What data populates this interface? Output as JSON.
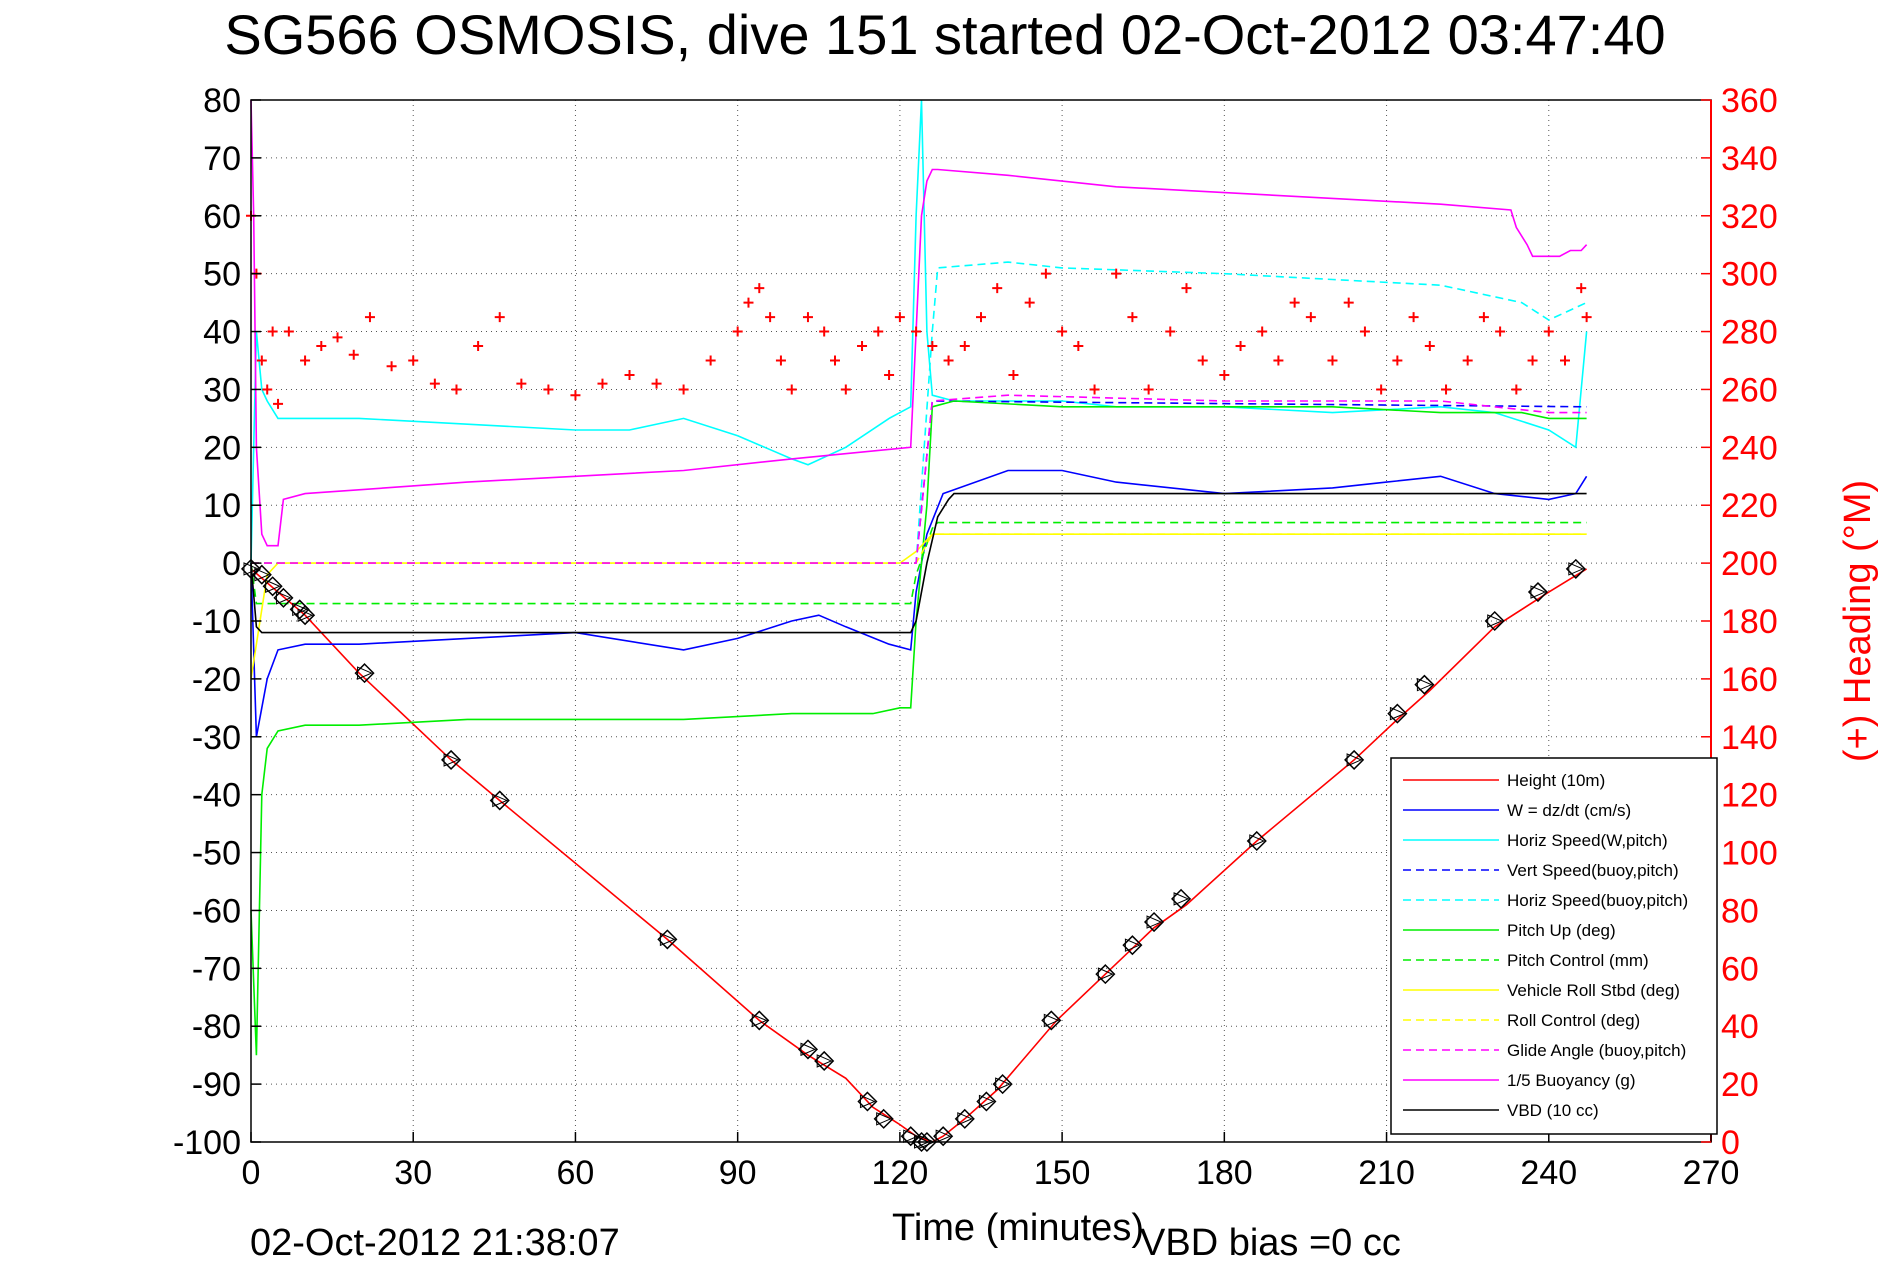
{
  "title": "SG566 OSMOSIS, dive 151 started 02-Oct-2012 03:47:40",
  "footer": {
    "timestamp": "02-Oct-2012 21:38:07",
    "vbd_bias": "VBD bias =0 cc"
  },
  "colors": {
    "height": "#ff0000",
    "w": "#0000ff",
    "horiz_w": "#00ffff",
    "vert_buoy": "#0000ff",
    "horiz_buoy": "#00ffff",
    "pitch_up": "#00ee00",
    "pitch_control": "#00ee00",
    "roll": "#ffff00",
    "roll_control": "#ffff00",
    "glide": "#ff00ff",
    "buoyancy": "#ff00ff",
    "vbd": "#000000",
    "heading": "#ff0000"
  },
  "chart_data": {
    "type": "line",
    "title": "SG566 OSMOSIS, dive 151 started 02-Oct-2012 03:47:40",
    "xlabel": "Time (minutes)",
    "ylabel": "",
    "y2label": "(+) Heading (°M)",
    "xlim": [
      0,
      270
    ],
    "ylim": [
      -100,
      80
    ],
    "y2lim": [
      0,
      360
    ],
    "x_ticks": [
      0,
      30,
      60,
      90,
      120,
      150,
      180,
      210,
      240,
      270
    ],
    "y_ticks": [
      -100,
      -90,
      -80,
      -70,
      -60,
      -50,
      -40,
      -30,
      -20,
      -10,
      0,
      10,
      20,
      30,
      40,
      50,
      60,
      70,
      80
    ],
    "y2_ticks": [
      0,
      20,
      40,
      60,
      80,
      100,
      120,
      140,
      160,
      180,
      200,
      220,
      240,
      260,
      280,
      300,
      320,
      340,
      360
    ],
    "grid": true,
    "legend_position": "bottom-right",
    "series": [
      {
        "name": "Height (10m)",
        "style": "solid",
        "color": "#ff0000",
        "x": [
          0,
          5,
          10,
          20,
          37,
          46,
          77,
          94,
          103,
          110,
          115,
          120,
          123,
          126,
          128,
          132,
          138,
          149,
          158,
          167,
          173,
          186,
          204,
          212,
          218,
          230,
          240,
          247
        ],
        "y": [
          -1,
          -5,
          -9,
          -19,
          -34,
          -41,
          -65,
          -79,
          -85,
          -89,
          -94,
          -97,
          -99,
          -100,
          -99,
          -96,
          -91,
          -79,
          -71,
          -63,
          -59,
          -48,
          -34,
          -27,
          -22,
          -11,
          -5,
          -1
        ]
      },
      {
        "name": "W = dz/dt (cm/s)",
        "style": "solid",
        "color": "#0000ff",
        "x": [
          0,
          1,
          2,
          3,
          5,
          10,
          20,
          40,
          60,
          80,
          90,
          100,
          105,
          110,
          118,
          122,
          123,
          125,
          128,
          140,
          150,
          160,
          180,
          200,
          210,
          220,
          230,
          240,
          245,
          247
        ],
        "y": [
          0,
          -30,
          -25,
          -20,
          -15,
          -14,
          -14,
          -13,
          -12,
          -15,
          -13,
          -10,
          -9,
          -11,
          -14,
          -15,
          -5,
          5,
          12,
          16,
          16,
          14,
          12,
          13,
          14,
          15,
          12,
          11,
          12,
          15
        ]
      },
      {
        "name": "Horiz Speed(W,pitch)",
        "style": "solid",
        "color": "#00ffff",
        "x": [
          0,
          1,
          2,
          3,
          5,
          10,
          20,
          40,
          60,
          70,
          80,
          90,
          95,
          100,
          103,
          110,
          118,
          122,
          123,
          124,
          125,
          126,
          130,
          140,
          150,
          160,
          180,
          200,
          220,
          230,
          240,
          245,
          247
        ],
        "y": [
          0,
          40,
          30,
          28,
          25,
          25,
          25,
          24,
          23,
          23,
          25,
          22,
          20,
          18,
          17,
          20,
          25,
          27,
          60,
          80,
          40,
          29,
          28,
          28,
          28,
          27,
          27,
          26,
          27,
          26,
          23,
          20,
          40
        ]
      },
      {
        "name": "Vert Speed(buoy,pitch)",
        "style": "dashed",
        "color": "#0000ff",
        "x": [
          0,
          5,
          60,
          122,
          123,
          126,
          247
        ],
        "y": [
          0,
          0,
          0,
          0,
          0,
          28,
          27
        ]
      },
      {
        "name": "Horiz Speed(buoy,pitch)",
        "style": "dashed",
        "color": "#00ffff",
        "x": [
          0,
          5,
          60,
          122,
          123,
          126,
          127,
          140,
          150,
          180,
          200,
          220,
          235,
          240,
          247
        ],
        "y": [
          0,
          0,
          0,
          0,
          0,
          40,
          51,
          52,
          51,
          50,
          49,
          48,
          45,
          42,
          45
        ]
      },
      {
        "name": "Pitch Up (deg)",
        "style": "solid",
        "color": "#00ee00",
        "x": [
          0,
          1,
          2,
          3,
          5,
          10,
          20,
          40,
          60,
          80,
          100,
          110,
          115,
          120,
          122,
          123,
          125,
          126,
          130,
          150,
          180,
          200,
          220,
          235,
          240,
          247
        ],
        "y": [
          -60,
          -85,
          -40,
          -32,
          -29,
          -28,
          -28,
          -27,
          -27,
          -27,
          -26,
          -26,
          -26,
          -25,
          -25,
          -10,
          10,
          27,
          28,
          27,
          27,
          27,
          26,
          26,
          25,
          25
        ]
      },
      {
        "name": "Pitch Control (mm)",
        "style": "dashed",
        "color": "#00ee00",
        "x": [
          0,
          1,
          3,
          120,
          122,
          123,
          126,
          127,
          247
        ],
        "y": [
          0,
          -7,
          -7,
          -7,
          -7,
          -2,
          6,
          7,
          7
        ]
      },
      {
        "name": "Vehicle Roll Stbd (deg)",
        "style": "solid",
        "color": "#ffff00",
        "x": [
          0,
          3,
          5,
          10,
          20,
          30,
          40,
          50,
          60,
          80,
          90,
          100,
          110,
          120,
          123,
          126,
          130,
          150,
          180,
          200,
          220,
          240,
          247
        ],
        "y": [
          -20,
          -2,
          0,
          0,
          0,
          0,
          0,
          0,
          0,
          0,
          0,
          0,
          0,
          0,
          2,
          5,
          5,
          5,
          5,
          5,
          5,
          5,
          5
        ]
      },
      {
        "name": "Roll Control (deg)",
        "style": "dashed",
        "color": "#ffff00",
        "x": [
          0,
          5,
          120,
          123,
          126,
          247
        ],
        "y": [
          0,
          0,
          0,
          0,
          5,
          5
        ]
      },
      {
        "name": "Glide Angle (buoy,pitch)",
        "style": "dashed",
        "color": "#ff00ff",
        "x": [
          0,
          5,
          60,
          122,
          123,
          126,
          140,
          180,
          220,
          240,
          247
        ],
        "y": [
          0,
          0,
          0,
          0,
          0,
          28,
          29,
          28,
          28,
          26,
          26
        ]
      },
      {
        "name": "1/5 Buoyancy (g)",
        "style": "solid",
        "color": "#ff00ff",
        "x": [
          0,
          0.5,
          1,
          2,
          3,
          4,
          5,
          6,
          10,
          40,
          60,
          80,
          100,
          122,
          123,
          124,
          125,
          126,
          127,
          140,
          160,
          180,
          200,
          220,
          233,
          234,
          236,
          237,
          240,
          242,
          244,
          246,
          247
        ],
        "y": [
          80,
          60,
          20,
          5,
          3,
          3,
          3,
          11,
          12,
          14,
          15,
          16,
          18,
          20,
          40,
          60,
          66,
          68,
          68,
          67,
          65,
          64,
          63,
          62,
          61,
          58,
          55,
          53,
          53,
          53,
          54,
          54,
          55
        ]
      },
      {
        "name": "VBD (10 cc)",
        "style": "solid",
        "color": "#000000",
        "x": [
          0,
          1,
          2,
          3,
          122,
          123,
          125,
          127,
          129,
          130,
          247
        ],
        "y": [
          0,
          -11,
          -12,
          -12,
          -12,
          -10,
          0,
          8,
          11,
          12,
          12
        ]
      },
      {
        "name": "(+) Heading (°M)",
        "style": "markers",
        "marker": "+",
        "color": "#ff0000",
        "axis": "right",
        "x": [
          0,
          1,
          2,
          3,
          4,
          5,
          7,
          10,
          13,
          16,
          19,
          22,
          26,
          30,
          34,
          38,
          42,
          46,
          50,
          55,
          60,
          65,
          70,
          75,
          80,
          85,
          90,
          92,
          94,
          96,
          98,
          100,
          103,
          106,
          108,
          110,
          113,
          116,
          118,
          120,
          123,
          126,
          129,
          132,
          135,
          138,
          141,
          144,
          147,
          150,
          153,
          156,
          160,
          163,
          166,
          170,
          173,
          176,
          180,
          183,
          187,
          190,
          193,
          196,
          200,
          203,
          206,
          209,
          212,
          215,
          218,
          221,
          225,
          228,
          231,
          234,
          237,
          240,
          243,
          246,
          247
        ],
        "y": [
          320,
          300,
          270,
          260,
          280,
          255,
          280,
          270,
          275,
          278,
          272,
          285,
          268,
          270,
          262,
          260,
          275,
          285,
          262,
          260,
          258,
          262,
          265,
          262,
          260,
          270,
          280,
          290,
          295,
          285,
          270,
          260,
          285,
          280,
          270,
          260,
          275,
          280,
          265,
          285,
          280,
          275,
          270,
          275,
          285,
          295,
          265,
          290,
          300,
          280,
          275,
          260,
          300,
          285,
          260,
          280,
          295,
          270,
          265,
          275,
          280,
          270,
          290,
          285,
          270,
          290,
          280,
          260,
          270,
          285,
          275,
          260,
          270,
          285,
          280,
          260,
          270,
          280,
          270,
          295,
          285
        ]
      }
    ],
    "markers": {
      "name": "diamond markers along Height",
      "x": [
        0,
        2,
        4,
        6,
        9,
        10,
        21,
        37,
        46,
        77,
        94,
        103,
        106,
        114,
        117,
        122,
        124,
        125,
        128,
        132,
        136,
        139,
        148,
        158,
        163,
        167,
        172,
        186,
        204,
        212,
        217,
        230,
        238,
        245
      ],
      "y": [
        -1,
        -2,
        -4,
        -6,
        -8,
        -9,
        -19,
        -34,
        -41,
        -65,
        -79,
        -84,
        -86,
        -93,
        -96,
        -99,
        -100,
        -100,
        -99,
        -96,
        -93,
        -90,
        -79,
        -71,
        -66,
        -62,
        -58,
        -48,
        -34,
        -26,
        -21,
        -10,
        -5,
        -1
      ]
    }
  }
}
